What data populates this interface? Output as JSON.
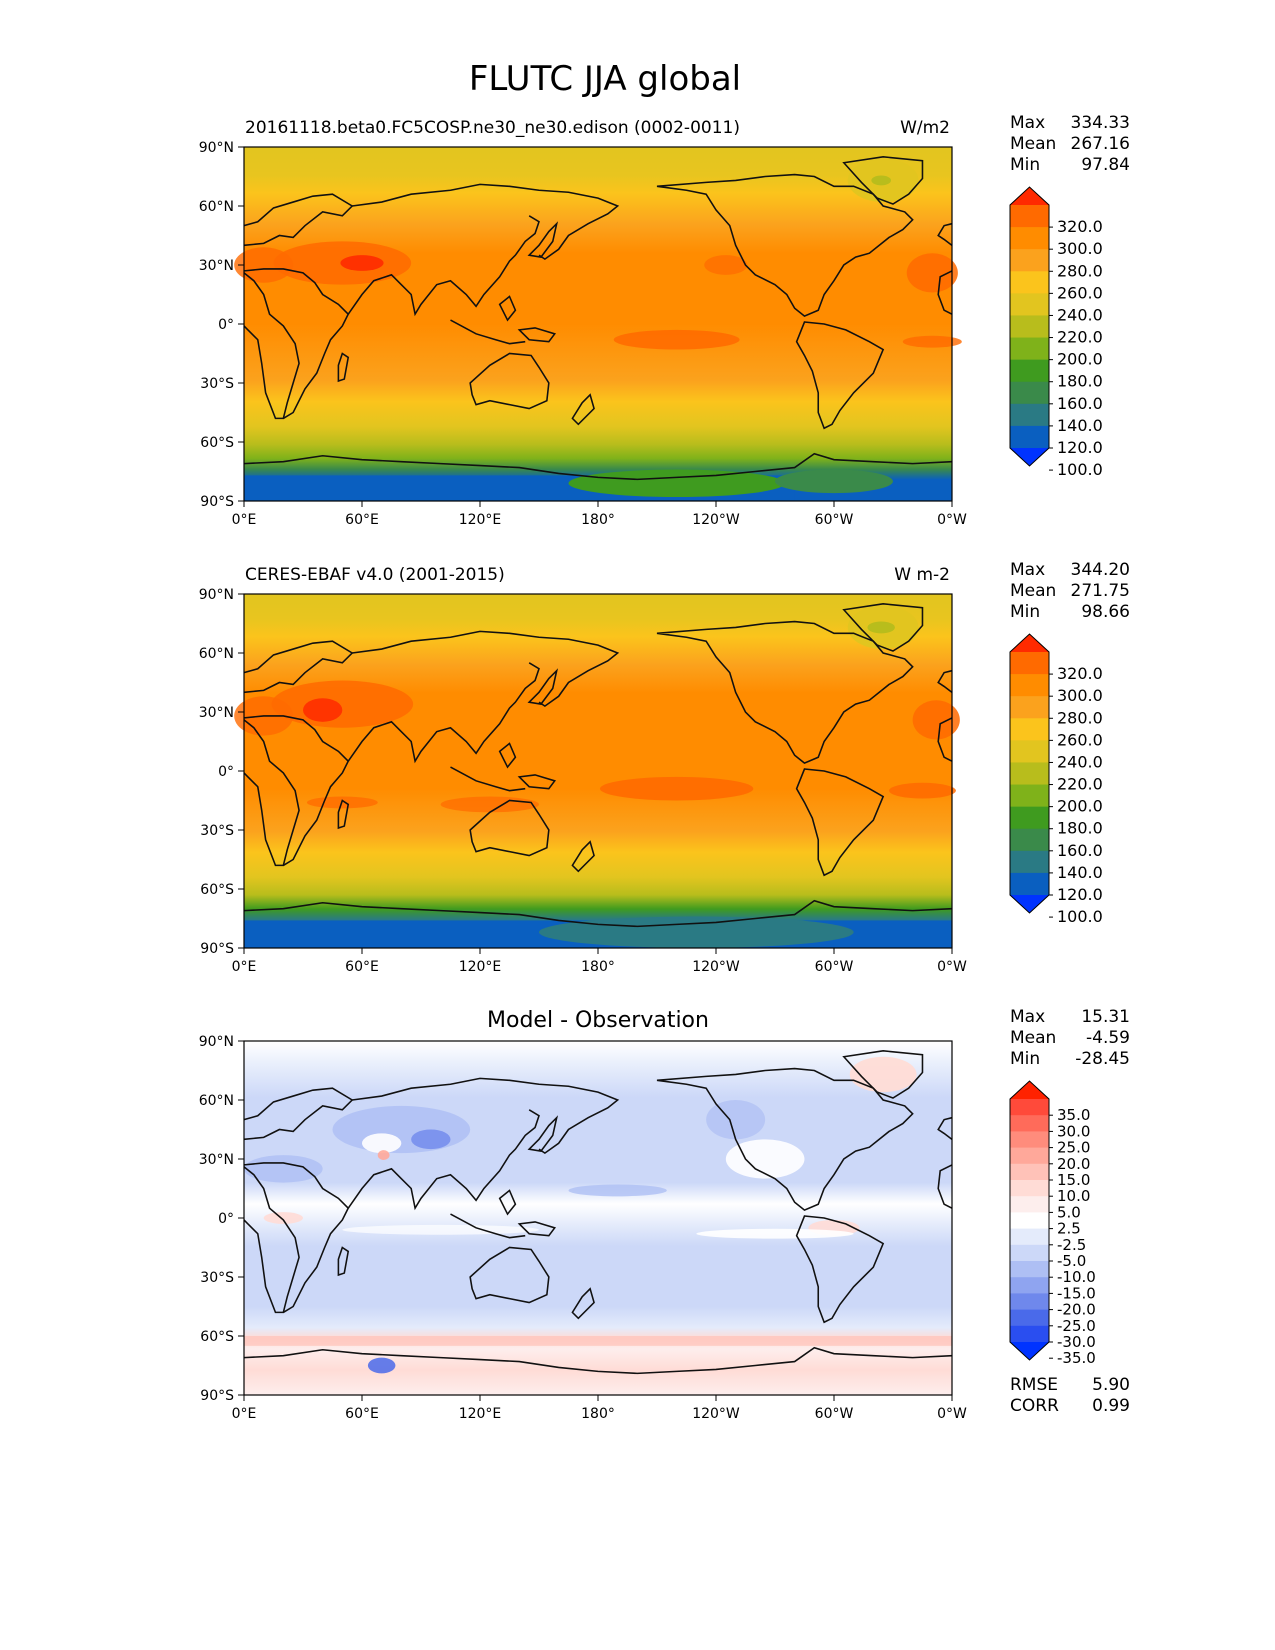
{
  "figure": {
    "title": "FLUTC JJA global"
  },
  "axes_ticks": {
    "lat_labels": [
      "90°N",
      "60°N",
      "30°N",
      "0°",
      "30°S",
      "60°S",
      "90°S"
    ],
    "lon_labels": [
      "0°E",
      "60°E",
      "120°E",
      "180°",
      "120°W",
      "60°W",
      "0°W"
    ]
  },
  "panels": [
    {
      "id": "model",
      "left_title": "20161118.beta0.FC5COSP.ne30_ne30.edison (0002-0011)",
      "center_title": "",
      "units": "W/m2",
      "stats": {
        "labels": [
          "Max",
          "Mean",
          "Min"
        ],
        "values": [
          "334.33",
          "267.16",
          "97.84"
        ]
      },
      "colorbar": {
        "labels": [
          "320.0",
          "300.0",
          "280.0",
          "260.0",
          "240.0",
          "220.0",
          "200.0",
          "180.0",
          "160.0",
          "140.0",
          "120.0",
          "100.0"
        ],
        "colors_top_to_bottom": [
          "#ff2a00",
          "#ff6a00",
          "#ff8c00",
          "#fba21d",
          "#fbc41c",
          "#e2c51f",
          "#b8bd1c",
          "#7fb21a",
          "#3f9b1f",
          "#3a8a4a",
          "#2a7a84",
          "#0a5fc0",
          "#0033ff"
        ]
      }
    },
    {
      "id": "obs",
      "left_title": "CERES-EBAF v4.0 (2001-2015)",
      "center_title": "",
      "units": "W m-2",
      "stats": {
        "labels": [
          "Max",
          "Mean",
          "Min"
        ],
        "values": [
          "344.20",
          "271.75",
          "98.66"
        ]
      },
      "colorbar": {
        "labels": [
          "320.0",
          "300.0",
          "280.0",
          "260.0",
          "240.0",
          "220.0",
          "200.0",
          "180.0",
          "160.0",
          "140.0",
          "120.0",
          "100.0"
        ],
        "colors_top_to_bottom": [
          "#ff2a00",
          "#ff6a00",
          "#ff8c00",
          "#fba21d",
          "#fbc41c",
          "#e2c51f",
          "#b8bd1c",
          "#7fb21a",
          "#3f9b1f",
          "#3a8a4a",
          "#2a7a84",
          "#0a5fc0",
          "#0033ff"
        ]
      }
    },
    {
      "id": "diff",
      "left_title": "",
      "center_title": "Model - Observation",
      "units": "",
      "stats": {
        "labels": [
          "Max",
          "Mean",
          "Min"
        ],
        "values": [
          "15.31",
          "-4.59",
          "-28.45"
        ]
      },
      "colorbar": {
        "labels": [
          "35.0",
          "30.0",
          "25.0",
          "20.0",
          "15.0",
          "10.0",
          "5.0",
          "2.5",
          "-2.5",
          "-5.0",
          "-10.0",
          "-15.0",
          "-20.0",
          "-25.0",
          "-30.0",
          "-35.0"
        ],
        "colors_top_to_bottom": [
          "#ff2200",
          "#ff4a3a",
          "#ff6b5a",
          "#ff8c7c",
          "#ffa89a",
          "#ffc2b8",
          "#ffdcd6",
          "#fdeeed",
          "#ffffff",
          "#e4ebfb",
          "#ccd8f8",
          "#aebff4",
          "#8fa4f0",
          "#6f88ec",
          "#4a6aea",
          "#2a4ef0",
          "#0033ff"
        ]
      },
      "metrics": {
        "labels": [
          "RMSE",
          "CORR"
        ],
        "values": [
          "5.90",
          "0.99"
        ]
      }
    }
  ]
}
